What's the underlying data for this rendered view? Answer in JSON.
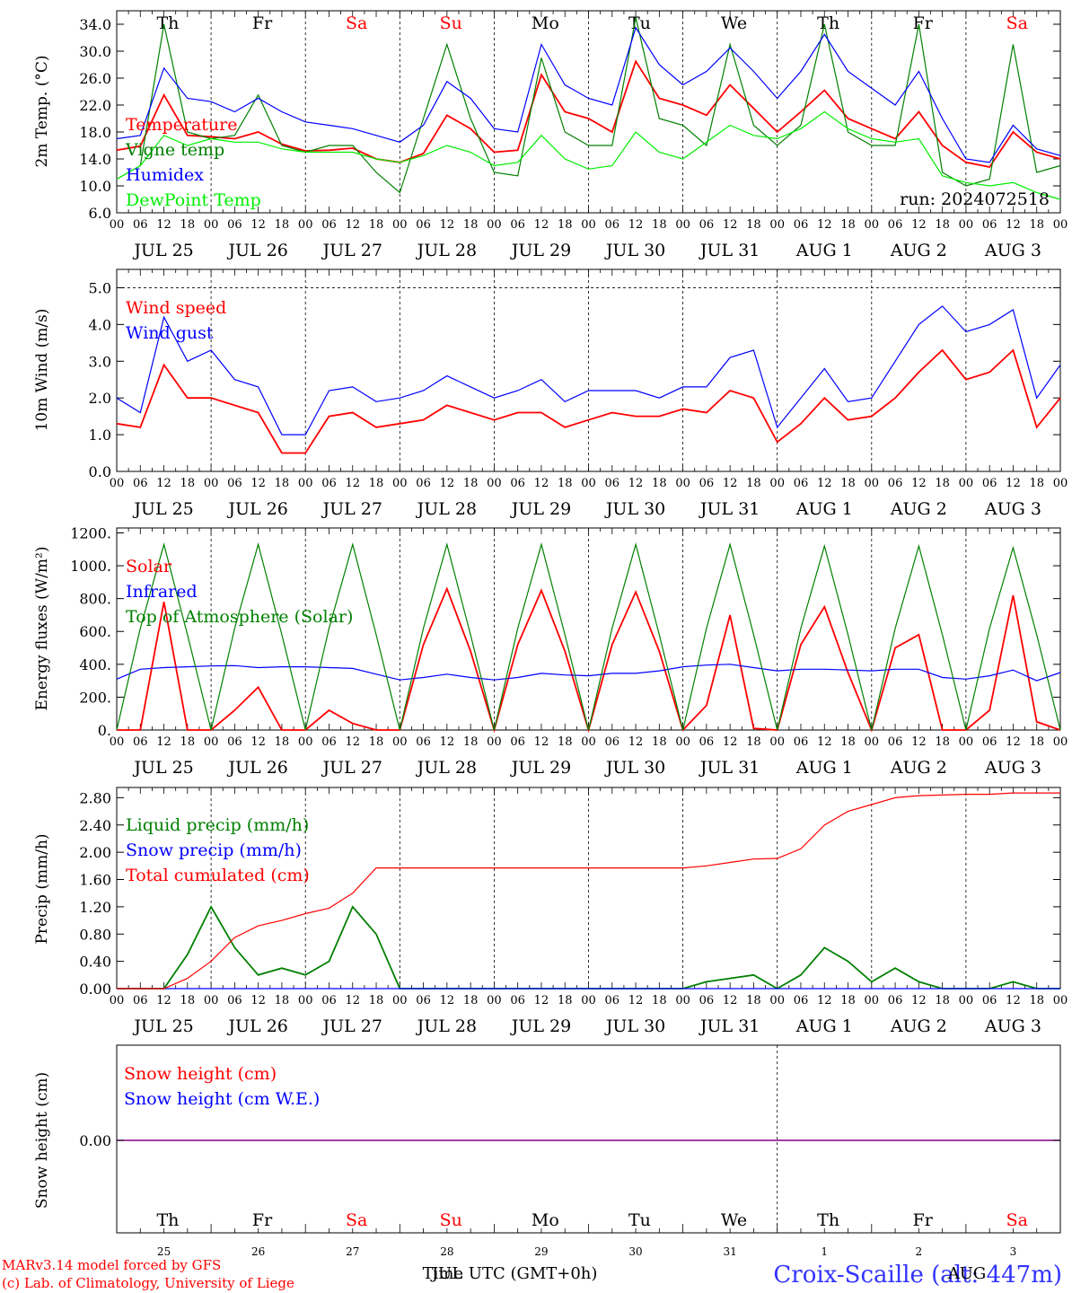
{
  "chart_data": [
    {
      "type": "line",
      "ylabel": "2m Temp. (°C)",
      "ylim": [
        6,
        36
      ],
      "yticks": [
        6.0,
        10.0,
        14.0,
        18.0,
        22.0,
        26.0,
        30.0,
        34.0
      ],
      "ytick_labels": [
        "6.0",
        "10.0",
        "14.0",
        "18.0",
        "22.0",
        "26.0",
        "30.0",
        "34.0"
      ],
      "x_hours": [
        0,
        6,
        12,
        18,
        24,
        30,
        36,
        42,
        48,
        54,
        60,
        66,
        72,
        78,
        84,
        90,
        96,
        102,
        108,
        114,
        120,
        126,
        132,
        138,
        144,
        150,
        156,
        162,
        168,
        174,
        180,
        186,
        192,
        198,
        204,
        210,
        216,
        222,
        228,
        234,
        240
      ],
      "series": [
        {
          "name": "Temperature",
          "color": "#ff0000",
          "values": [
            15.3,
            15.9,
            23.5,
            17.5,
            17.3,
            17.0,
            18.0,
            16.2,
            15.2,
            15.3,
            15.6,
            14.0,
            13.5,
            14.8,
            20.5,
            18.5,
            15.0,
            15.3,
            26.5,
            21.0,
            20.0,
            18.0,
            28.5,
            23.0,
            22.0,
            20.5,
            25.0,
            21.5,
            18.0,
            21.0,
            24.2,
            20.0,
            18.5,
            17.0,
            21.0,
            16.0,
            13.5,
            12.8,
            18.0,
            15.0,
            14.0
          ]
        },
        {
          "name": "Vigne temp",
          "color": "#008000",
          "values": [
            11.0,
            13.0,
            34.0,
            18.0,
            17.0,
            17.5,
            23.5,
            16.0,
            15.0,
            16.0,
            16.0,
            12.0,
            9.0,
            20.0,
            31.0,
            20.0,
            12.0,
            11.5,
            29.0,
            18.0,
            16.0,
            16.0,
            35.0,
            20.0,
            19.0,
            16.0,
            31.0,
            19.0,
            16.0,
            19.0,
            34.0,
            18.0,
            16.0,
            16.0,
            34.0,
            12.0,
            10.0,
            11.0,
            31.0,
            12.0,
            13.0
          ]
        },
        {
          "name": "Humidex",
          "color": "#0000ff",
          "values": [
            17.0,
            17.5,
            27.5,
            23.0,
            22.5,
            21.0,
            23.0,
            21.0,
            19.5,
            19.0,
            18.5,
            17.5,
            16.5,
            19.0,
            25.5,
            23.0,
            18.5,
            18.0,
            31.0,
            25.0,
            23.0,
            22.0,
            33.5,
            28.0,
            25.0,
            27.0,
            30.5,
            27.0,
            23.0,
            27.0,
            32.5,
            27.0,
            24.5,
            22.0,
            27.0,
            20.0,
            14.0,
            13.5,
            19.0,
            15.5,
            14.5
          ]
        },
        {
          "name": "DewPoint Temp",
          "color": "#00ee00",
          "values": [
            11.0,
            13.0,
            17.5,
            16.0,
            17.0,
            16.5,
            16.5,
            15.5,
            15.0,
            15.0,
            15.0,
            14.0,
            13.5,
            14.5,
            16.0,
            15.0,
            13.0,
            13.5,
            17.5,
            14.0,
            12.5,
            13.0,
            18.0,
            15.0,
            14.0,
            16.5,
            19.0,
            17.5,
            17.0,
            18.5,
            21.0,
            18.5,
            17.0,
            16.5,
            17.0,
            11.5,
            10.5,
            10.0,
            10.5,
            9.0,
            8.0
          ]
        }
      ],
      "annotation": "run: 2024072518",
      "day_labels": [
        "Th",
        "Fr",
        "Sa",
        "Su",
        "Mo",
        "Tu",
        "We",
        "Th",
        "Fr",
        "Sa"
      ],
      "weekend": [
        false,
        false,
        true,
        true,
        false,
        false,
        false,
        false,
        false,
        true
      ],
      "date_labels": [
        "JUL 25",
        "JUL 26",
        "JUL 27",
        "JUL 28",
        "JUL 29",
        "JUL 30",
        "JUL 31",
        "AUG  1",
        "AUG  2",
        "AUG  3"
      ],
      "hour_tick_labels": [
        "00",
        "06",
        "12",
        "18"
      ],
      "legend_position": "left"
    },
    {
      "type": "line",
      "ylabel": "10m Wind (m/s)",
      "ylim": [
        0,
        5.5
      ],
      "yticks": [
        0,
        1,
        2,
        3,
        4,
        5
      ],
      "ytick_labels": [
        "0.0",
        "1.0",
        "2.0",
        "3.0",
        "4.0",
        "5.0"
      ],
      "reference_line": 5.0,
      "x_hours": [
        0,
        6,
        12,
        18,
        24,
        30,
        36,
        42,
        48,
        54,
        60,
        66,
        72,
        78,
        84,
        90,
        96,
        102,
        108,
        114,
        120,
        126,
        132,
        138,
        144,
        150,
        156,
        162,
        168,
        174,
        180,
        186,
        192,
        198,
        204,
        210,
        216,
        222,
        228,
        234,
        240
      ],
      "series": [
        {
          "name": "Wind speed",
          "color": "#ff0000",
          "values": [
            1.3,
            1.2,
            2.9,
            2.0,
            2.0,
            1.8,
            1.6,
            0.5,
            0.5,
            1.5,
            1.6,
            1.2,
            1.3,
            1.4,
            1.8,
            1.6,
            1.4,
            1.6,
            1.6,
            1.2,
            1.4,
            1.6,
            1.5,
            1.5,
            1.7,
            1.6,
            2.2,
            2.0,
            0.8,
            1.3,
            2.0,
            1.4,
            1.5,
            2.0,
            2.7,
            3.3,
            2.5,
            2.7,
            3.3,
            1.2,
            2.0
          ]
        },
        {
          "name": "Wind gust",
          "color": "#0000ff",
          "values": [
            2.0,
            1.6,
            4.2,
            3.0,
            3.3,
            2.5,
            2.3,
            1.0,
            1.0,
            2.2,
            2.3,
            1.9,
            2.0,
            2.2,
            2.6,
            2.3,
            2.0,
            2.2,
            2.5,
            1.9,
            2.2,
            2.2,
            2.2,
            2.0,
            2.3,
            2.3,
            3.1,
            3.3,
            1.2,
            2.0,
            2.8,
            1.9,
            2.0,
            3.0,
            4.0,
            4.5,
            3.8,
            4.0,
            4.4,
            2.0,
            2.9
          ]
        }
      ],
      "date_labels": [
        "JUL 25",
        "JUL 26",
        "JUL 27",
        "JUL 28",
        "JUL 29",
        "JUL 30",
        "JUL 31",
        "AUG  1",
        "AUG  2",
        "AUG  3"
      ],
      "hour_tick_labels": [
        "00",
        "06",
        "12",
        "18"
      ],
      "legend_position": "left"
    },
    {
      "type": "line",
      "ylabel": "Energy fluxes (W/m²)",
      "ylim": [
        0,
        1230
      ],
      "yticks": [
        0,
        200,
        400,
        600,
        800,
        1000,
        1200
      ],
      "ytick_labels": [
        "0.",
        "200.",
        "400.",
        "600.",
        "800.",
        "1000.",
        "1200."
      ],
      "x_hours": [
        0,
        6,
        12,
        18,
        24,
        30,
        36,
        42,
        48,
        54,
        60,
        66,
        72,
        78,
        84,
        90,
        96,
        102,
        108,
        114,
        120,
        126,
        132,
        138,
        144,
        150,
        156,
        162,
        168,
        174,
        180,
        186,
        192,
        198,
        204,
        210,
        216,
        222,
        228,
        234,
        240
      ],
      "series": [
        {
          "name": "Solar",
          "color": "#ff0000",
          "values": [
            0,
            0,
            780,
            0,
            0,
            120,
            260,
            0,
            0,
            120,
            40,
            0,
            0,
            520,
            860,
            480,
            0,
            520,
            850,
            480,
            0,
            520,
            840,
            480,
            0,
            150,
            700,
            10,
            0,
            520,
            750,
            350,
            0,
            500,
            580,
            0,
            0,
            120,
            820,
            50,
            0
          ]
        },
        {
          "name": "Infrared",
          "color": "#0000ff",
          "values": [
            310,
            370,
            380,
            385,
            390,
            392,
            380,
            385,
            385,
            380,
            375,
            340,
            305,
            320,
            340,
            320,
            305,
            320,
            345,
            335,
            330,
            345,
            345,
            360,
            385,
            395,
            400,
            380,
            360,
            370,
            370,
            365,
            360,
            370,
            370,
            320,
            310,
            330,
            365,
            300,
            350
          ]
        },
        {
          "name": "Top of Atmosphere (Solar)",
          "color": "#008000",
          "values": [
            0,
            620,
            1130,
            580,
            0,
            620,
            1130,
            580,
            0,
            620,
            1130,
            580,
            0,
            620,
            1130,
            580,
            0,
            620,
            1130,
            580,
            0,
            620,
            1130,
            580,
            0,
            620,
            1130,
            580,
            0,
            620,
            1120,
            580,
            0,
            620,
            1120,
            580,
            0,
            620,
            1110,
            580,
            0
          ]
        }
      ],
      "date_labels": [
        "JUL 25",
        "JUL 26",
        "JUL 27",
        "JUL 28",
        "JUL 29",
        "JUL 30",
        "JUL 31",
        "AUG  1",
        "AUG  2",
        "AUG  3"
      ],
      "hour_tick_labels": [
        "00",
        "06",
        "12",
        "18"
      ],
      "legend_position": "left"
    },
    {
      "type": "line",
      "ylabel": "Precip (mm/h)",
      "ylim": [
        0,
        2.95
      ],
      "yticks": [
        0,
        0.4,
        0.8,
        1.2,
        1.6,
        2.0,
        2.4,
        2.8
      ],
      "ytick_labels": [
        "0.00",
        "0.40",
        "0.80",
        "1.20",
        "1.60",
        "2.00",
        "2.40",
        "2.80"
      ],
      "x_hours": [
        0,
        6,
        12,
        18,
        24,
        30,
        36,
        42,
        48,
        54,
        60,
        66,
        72,
        78,
        84,
        90,
        96,
        102,
        108,
        114,
        120,
        126,
        132,
        138,
        144,
        150,
        156,
        162,
        168,
        174,
        180,
        186,
        192,
        198,
        204,
        210,
        216,
        222,
        228,
        234,
        240
      ],
      "series": [
        {
          "name": "Liquid precip (mm/h)",
          "color": "#008000",
          "values": [
            0,
            0,
            0,
            0.5,
            1.2,
            0.6,
            0.2,
            0.3,
            0.2,
            0.4,
            1.2,
            0.8,
            0,
            0,
            0,
            0,
            0,
            0,
            0,
            0,
            0,
            0,
            0,
            0,
            0,
            0.1,
            0.15,
            0.2,
            0,
            0.2,
            0.6,
            0.4,
            0.1,
            0.3,
            0.1,
            0,
            0,
            0,
            0.1,
            0,
            0
          ]
        },
        {
          "name": "Snow precip (mm/h)",
          "color": "#0000ff",
          "values": [
            0,
            0,
            0,
            0,
            0,
            0,
            0,
            0,
            0,
            0,
            0,
            0,
            0,
            0,
            0,
            0,
            0,
            0,
            0,
            0,
            0,
            0,
            0,
            0,
            0,
            0,
            0,
            0,
            0,
            0,
            0,
            0,
            0,
            0,
            0,
            0,
            0,
            0,
            0,
            0,
            0
          ]
        },
        {
          "name": "Total cumulated (cm)",
          "color": "#ff0000",
          "values": [
            0,
            0,
            0,
            0.15,
            0.4,
            0.75,
            0.92,
            1.0,
            1.1,
            1.18,
            1.4,
            1.77,
            1.77,
            1.77,
            1.77,
            1.77,
            1.77,
            1.77,
            1.77,
            1.77,
            1.77,
            1.77,
            1.77,
            1.77,
            1.77,
            1.8,
            1.85,
            1.9,
            1.91,
            2.05,
            2.4,
            2.6,
            2.7,
            2.8,
            2.83,
            2.84,
            2.85,
            2.85,
            2.87,
            2.87,
            2.87
          ]
        }
      ],
      "date_labels": [
        "JUL 25",
        "JUL 26",
        "JUL 27",
        "JUL 28",
        "JUL 29",
        "JUL 30",
        "JUL 31",
        "AUG  1",
        "AUG  2",
        "AUG  3"
      ],
      "hour_tick_labels": [
        "00",
        "06",
        "12",
        "18"
      ],
      "legend_position": "left"
    },
    {
      "type": "line",
      "ylabel": "Snow height (cm)",
      "yticks": [
        0
      ],
      "ytick_labels": [
        "0.00"
      ],
      "series": [
        {
          "name": "Snow height (cm)",
          "color": "#ff0000",
          "values": [
            0,
            0
          ]
        },
        {
          "name": "Snow height (cm W.E.)",
          "color": "#0000ff",
          "values": [
            0,
            0
          ]
        }
      ],
      "day_labels": [
        "Th",
        "Fr",
        "Sa",
        "Su",
        "Mo",
        "Tu",
        "We",
        "Th",
        "Fr",
        "Sa"
      ],
      "weekend": [
        false,
        false,
        true,
        true,
        false,
        false,
        false,
        false,
        false,
        true
      ],
      "day_numbers": [
        "25",
        "26",
        "27",
        "28",
        "29",
        "30",
        "31",
        "1",
        "2",
        "3"
      ],
      "month_label": "AUG",
      "xlabel": "Time UTC (GMT+0h)",
      "xlabel_overlay": "JUL",
      "legend_position": "left"
    }
  ],
  "footer": {
    "model_line": "MARv3.14 model forced by GFS",
    "copyright_line": "(c) Lab. of Climatology, University of Liege",
    "station": "Croix-Scaille (alt: 447m)"
  },
  "colors": {
    "red": "#ff0000",
    "green": "#008000",
    "blue": "#0000ff",
    "light_green": "#00ee00",
    "purple": "#800080"
  }
}
